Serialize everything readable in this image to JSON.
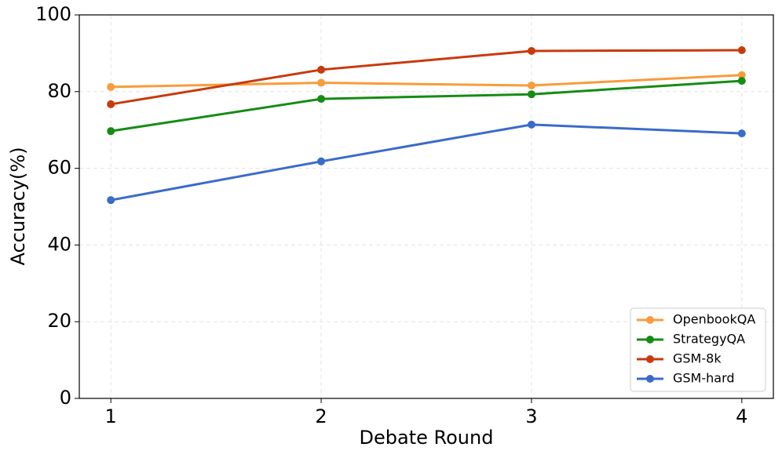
{
  "chart_data": {
    "type": "line",
    "x": [
      1,
      2,
      3,
      4
    ],
    "xlabel": "Debate Round",
    "ylabel": "Accuracy(%)",
    "xlim": [
      0.85,
      4.15
    ],
    "xticks": [
      1,
      2,
      3,
      4
    ],
    "ylim": [
      0,
      100
    ],
    "yticks": [
      0,
      20,
      40,
      60,
      80,
      100
    ],
    "grid": true,
    "legend": "lower right",
    "series": [
      {
        "name": "OpenbookQA",
        "color": "#f89c3c",
        "values": [
          81.2,
          82.3,
          81.6,
          84.3
        ]
      },
      {
        "name": "StrategyQA",
        "color": "#158c15",
        "values": [
          69.7,
          78.1,
          79.3,
          82.8
        ]
      },
      {
        "name": "GSM-8k",
        "color": "#c83a0c",
        "values": [
          76.7,
          85.7,
          90.6,
          90.8
        ]
      },
      {
        "name": "GSM-hard",
        "color": "#3a6bcb",
        "values": [
          51.7,
          61.8,
          71.4,
          69.1
        ]
      }
    ]
  }
}
